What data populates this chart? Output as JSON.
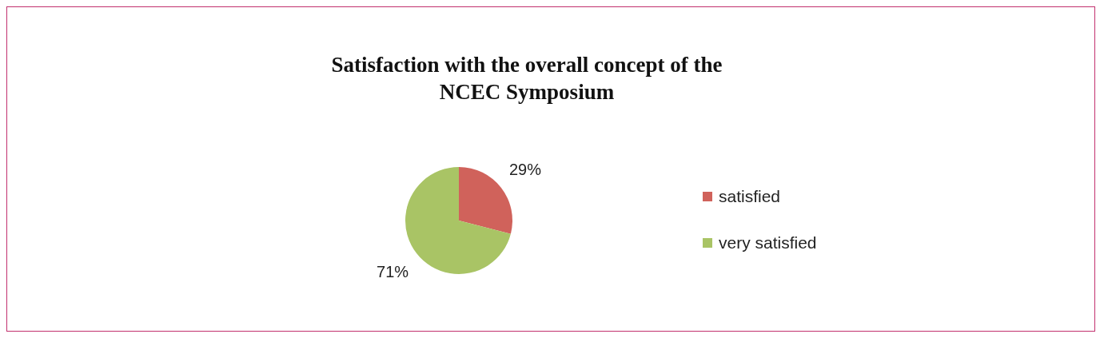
{
  "chart_data": {
    "type": "pie",
    "title": "Satisfaction with the overall concept of the\nNCEC Symposium",
    "categories": [
      "satisfied",
      "very satisfied"
    ],
    "values": [
      29,
      71
    ],
    "colors": [
      "#d0625b",
      "#a9c465"
    ],
    "value_labels": [
      "29%",
      "71%"
    ],
    "legend": "right"
  }
}
